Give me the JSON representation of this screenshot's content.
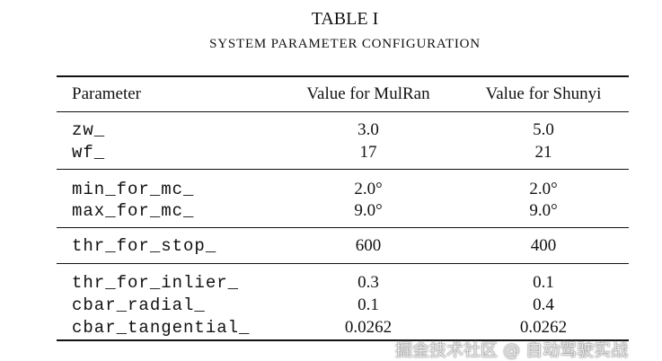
{
  "table": {
    "title": "TABLE I",
    "subtitle": "SYSTEM PARAMETER CONFIGURATION",
    "headers": [
      "Parameter",
      "Value for MulRan",
      "Value for Shunyi"
    ],
    "groups": [
      [
        [
          "zw_",
          "3.0",
          "5.0"
        ],
        [
          "wf_",
          "17",
          "21"
        ]
      ],
      [
        [
          "min_for_mc_",
          "2.0°",
          "2.0°"
        ],
        [
          "max_for_mc_",
          "9.0°",
          "9.0°"
        ]
      ],
      [
        [
          "thr_for_stop_",
          "600",
          "400"
        ]
      ],
      [
        [
          "thr_for_inlier_",
          "0.3",
          "0.1"
        ],
        [
          "cbar_radial_",
          "0.1",
          "0.4"
        ],
        [
          "cbar_tangential_",
          "0.0262",
          "0.0262"
        ]
      ]
    ]
  },
  "watermark": "掘金技术社区 @ 自动驾驶实战"
}
